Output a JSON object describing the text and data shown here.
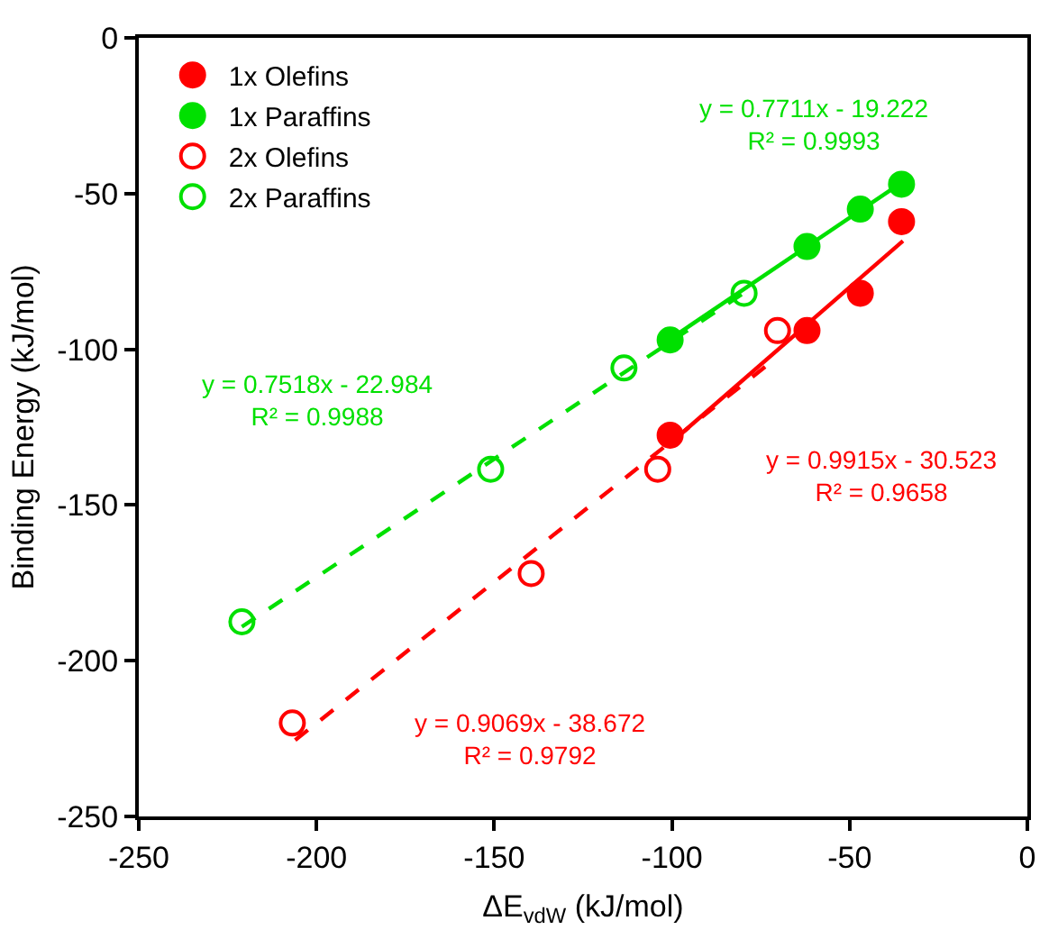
{
  "chart_data": {
    "type": "scatter",
    "xlabel": "ΔE$_{vdW}$ (kJ/mol)",
    "ylabel": "Binding Energy (kJ/mol)",
    "xlim": [
      -250,
      0
    ],
    "xticks": [
      -250,
      -200,
      -150,
      -100,
      -50,
      0
    ],
    "ylim": [
      -250,
      0
    ],
    "yticks": [
      -250,
      -200,
      -150,
      -100,
      -50,
      0
    ],
    "legend": "top left",
    "marker": "circle",
    "series": [
      {
        "name": "1x Olefins",
        "color": "#ff0000",
        "x": [
          -100.5,
          -62,
          -47,
          -35.4
        ],
        "values": [
          -127.6,
          -94,
          -82,
          -59
        ]
      },
      {
        "name": "1x Paraffins",
        "color": "#00e000",
        "x": [
          -100.5,
          -62,
          -47,
          -35.4
        ],
        "values": [
          -97,
          -67,
          -55,
          -47
        ]
      },
      {
        "name": "2x Olefins",
        "color": "#ff0000",
        "marker": "circle-open",
        "x": [
          -70.3,
          -104,
          -139.6,
          -206.8
        ],
        "values": [
          -94,
          -138.5,
          -172,
          -220
        ]
      },
      {
        "name": "2x Paraffins",
        "color": "#00e000",
        "marker": "circle-open",
        "x": [
          -79.7,
          -113.5,
          -151,
          -221
        ],
        "values": [
          -82,
          -106,
          -138.5,
          -187.5
        ]
      },
      {
        "type": "line",
        "color": "#00e000",
        "marker": "none",
        "line_style": "solid",
        "x": [
          -100,
          -35
        ],
        "values": [
          -96.3,
          -46.2
        ]
      },
      {
        "type": "line",
        "color": "#00e000",
        "marker": "none",
        "line_style": "dashed",
        "x": [
          -221,
          -80
        ],
        "values": [
          -189.1,
          -82.1
        ]
      },
      {
        "type": "line",
        "color": "#ff0000",
        "marker": "none",
        "line_style": "solid",
        "x": [
          -100,
          -35
        ],
        "values": [
          -129.7,
          -65.2
        ]
      },
      {
        "type": "line",
        "color": "#ff0000",
        "marker": "none",
        "line_style": "dashed",
        "x": [
          -206,
          -71
        ],
        "values": [
          -225.5,
          -103.1
        ]
      }
    ],
    "annotations": [
      "y = 0.7711x - 19.222\nR² = 0.9993",
      "y = 0.7518x - 22.984\nR² = 0.9988",
      "y = 0.9915x - 30.523\nR² = 0.9658",
      "y = 0.9069x - 38.672\nR² = 0.9792"
    ]
  }
}
